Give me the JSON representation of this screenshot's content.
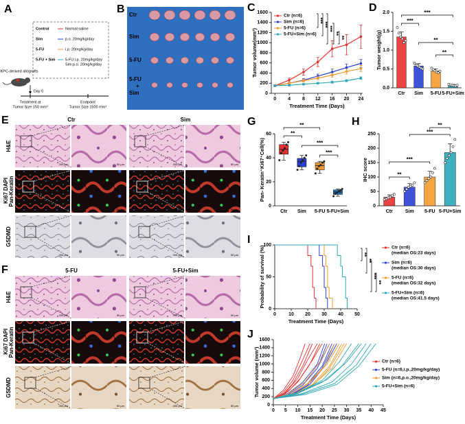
{
  "figure": {
    "panel_labels": [
      "A",
      "B",
      "C",
      "D",
      "E",
      "F",
      "G",
      "H",
      "I",
      "J"
    ],
    "schematic": {
      "allografts": "KPC-derived allografts",
      "day0": "Day 0",
      "treatment": [
        "Treatment at",
        "Tumor Size 150 mm³"
      ],
      "endpoint": [
        "Endpoint",
        "Tumor Size 1500 mm³"
      ],
      "legend": [
        {
          "group": "Control",
          "treatment": "Normal saline",
          "color": "#e8312f"
        },
        {
          "group": "Sim",
          "treatment": "p.o. 20mg/kg/day",
          "color": "#2a3fd6"
        },
        {
          "group": "5-FU",
          "treatment": "i.p. 20mg/kg/day",
          "color": "#f39a2b"
        },
        {
          "group": "5-FU + Sim",
          "treatment": [
            "5-FU:i.p. 20mg/kg/day",
            "Sim:p.o. 20mg/kg/day"
          ],
          "color": "#2aa7b8"
        }
      ]
    },
    "tumor_photo": {
      "row_labels": [
        "Ctr",
        "Sim",
        "5-FU",
        [
          "5-FU",
          "+",
          "Sim"
        ]
      ]
    },
    "micrographs": [
      {
        "columns": [
          "Ctr",
          "Sim"
        ]
      },
      {
        "columns": [
          "5-FU",
          "5-FU+Sim"
        ]
      }
    ],
    "row_labels": [
      "H&E",
      [
        "Ki67",
        "DAPI",
        "Pan-Keratin"
      ],
      "GSDMD"
    ],
    "scale_bars": [
      "200 μm",
      "50 μm"
    ]
  },
  "chart_data": [
    {
      "type": "line",
      "xlabel": "Treatment Time (Days)",
      "ylabel": "Tumor volume(mm³)",
      "x": [
        0,
        4,
        8,
        12,
        16,
        20,
        24
      ],
      "xlim": [
        -1,
        24.5
      ],
      "xticks": [
        0,
        4,
        8,
        12,
        16,
        20,
        24
      ],
      "ylim": [
        0,
        1600
      ],
      "yticks": [
        0,
        200,
        400,
        600,
        800,
        1000,
        1200,
        1400,
        1600
      ],
      "legend": "top-left",
      "series": [
        {
          "name": "Ctr (n=6)",
          "color": "#e8312f",
          "values": [
            150,
            260,
            420,
            620,
            880,
            960,
            1120
          ],
          "errors": [
            15,
            40,
            60,
            90,
            160,
            200,
            230
          ]
        },
        {
          "name": "Sim (n=6)",
          "color": "#2a3fd6",
          "values": [
            150,
            200,
            260,
            340,
            420,
            510,
            590
          ],
          "errors": [
            10,
            20,
            30,
            40,
            60,
            70,
            80
          ]
        },
        {
          "name": "5-FU (n=6)",
          "color": "#f39a2b",
          "values": [
            150,
            200,
            250,
            300,
            360,
            430,
            490
          ],
          "errors": [
            10,
            20,
            25,
            30,
            40,
            50,
            60
          ]
        },
        {
          "name": "5-FU+Sim (n=6)",
          "color": "#2aa7b8",
          "values": [
            150,
            160,
            180,
            200,
            220,
            250,
            300
          ],
          "errors": [
            10,
            10,
            15,
            15,
            20,
            20,
            25
          ]
        }
      ],
      "annotations": [
        "***",
        "***",
        "***",
        "**",
        "**"
      ]
    },
    {
      "type": "bar",
      "ylabel": "Tumor weight(g)",
      "categories": [
        "Ctr",
        "Sim",
        "5-FU",
        "5-FU+Sim"
      ],
      "values": [
        1.35,
        0.58,
        0.45,
        0.07
      ],
      "errors": [
        0.13,
        0.06,
        0.05,
        0.02
      ],
      "colors": [
        "#e8312f",
        "#2a3fd6",
        "#f39a2b",
        "#1f8fa0"
      ],
      "points": [
        [
          1.6,
          1.45,
          1.35,
          1.3,
          1.2,
          1.25
        ],
        [
          0.65,
          0.6,
          0.58,
          0.55,
          0.52,
          0.5
        ],
        [
          0.52,
          0.48,
          0.45,
          0.42,
          0.4,
          0.44
        ],
        [
          0.09,
          0.08,
          0.07,
          0.06,
          0.05,
          0.07
        ]
      ],
      "ylim": [
        0,
        2
      ],
      "yticks": [
        {
          "value": 0,
          "label": "0.0"
        },
        {
          "value": 0.5,
          "label": "0.5"
        },
        {
          "value": 1,
          "label": "1.0"
        },
        {
          "value": 1.5,
          "label": "1.5"
        },
        {
          "value": 2,
          "label": "2.0"
        }
      ],
      "annotations": [
        "***",
        "***",
        "**",
        "**"
      ]
    },
    {
      "type": "box",
      "ylabel": "Pan- Keratin⁺Ki67⁺Cell(%)",
      "categories": [
        "Ctr",
        "Sim",
        "5-FU",
        "5-FU+Sim"
      ],
      "colors": [
        "#e8312f",
        "#2a3fd6",
        "#f39a2b",
        "#1f6fb8"
      ],
      "boxes": [
        {
          "min": 38,
          "q1": 43,
          "median": 47,
          "q3": 51,
          "max": 53,
          "points": [
            38,
            44,
            46,
            48,
            51,
            53
          ]
        },
        {
          "min": 30,
          "q1": 32.5,
          "median": 37,
          "q3": 39.5,
          "max": 42,
          "points": [
            30,
            33,
            36,
            38,
            40,
            42
          ]
        },
        {
          "min": 27,
          "q1": 30,
          "median": 33.5,
          "q3": 36,
          "max": 37,
          "points": [
            27,
            31,
            33,
            34,
            36,
            37
          ]
        },
        {
          "min": 8,
          "q1": 9.5,
          "median": 11.5,
          "q3": 13.25,
          "max": 14,
          "points": [
            8,
            10,
            11,
            12,
            13,
            14
          ]
        }
      ],
      "ylim": [
        0,
        60
      ],
      "yticks": [
        0,
        20,
        40,
        60
      ],
      "annotations": [
        "**",
        "**",
        "***",
        "***"
      ]
    },
    {
      "type": "bar",
      "ylabel": "IHC score",
      "categories": [
        "Ctr",
        "Sim",
        "5-FU",
        "5-FU+Sim"
      ],
      "values": [
        30,
        65,
        100,
        185
      ],
      "errors": [
        8,
        12,
        20,
        30
      ],
      "colors": [
        "#e8312f",
        "#2a3fd6",
        "#f39a2b",
        "#2aa7b8"
      ],
      "points": [
        [
          22,
          25,
          28,
          30,
          35,
          40
        ],
        [
          50,
          58,
          65,
          68,
          72,
          80
        ],
        [
          80,
          88,
          95,
          100,
          115,
          130
        ],
        [
          150,
          165,
          175,
          185,
          205,
          230
        ]
      ],
      "ylim": [
        0,
        250
      ],
      "yticks": [
        0,
        50,
        100,
        150,
        200,
        250
      ],
      "annotations": [
        "**",
        "***",
        "***",
        "**"
      ]
    },
    {
      "type": "step",
      "xlabel": "Treatment Time (Days)",
      "ylabel": "Probability of survival (%)",
      "xlim": [
        0,
        50
      ],
      "xticks": [
        0,
        10,
        20,
        30,
        40,
        50
      ],
      "ylim": [
        0,
        100
      ],
      "yticks": [
        0,
        50,
        100
      ],
      "legend": "right",
      "series": [
        {
          "name": "Ctr (n=6)",
          "note": "(median OS:23 days)",
          "color": "#e8312f",
          "x": [
            0,
            20,
            22,
            23,
            24,
            25
          ],
          "values": [
            100,
            83.3,
            66.7,
            33.3,
            16.7,
            0
          ]
        },
        {
          "name": "Sim (n=6)",
          "note": "(median OS:30 days)",
          "color": "#2a3fd6",
          "x": [
            0,
            27,
            29,
            30,
            31,
            32
          ],
          "values": [
            100,
            83.3,
            66.7,
            33.3,
            16.7,
            0
          ]
        },
        {
          "name": "5-FU (n=6)",
          "note": "(median OS:32 days)",
          "color": "#f39a2b",
          "x": [
            0,
            30,
            31,
            32,
            33,
            35
          ],
          "values": [
            100,
            83.3,
            66.7,
            33.3,
            16.7,
            0
          ]
        },
        {
          "name": "5-FU+Sim (n=6)",
          "note": "(median OS:41.5 days)",
          "color": "#2aa7b8",
          "x": [
            0,
            38,
            40,
            41,
            43,
            44
          ],
          "values": [
            100,
            83.3,
            66.7,
            50,
            16.7,
            0
          ]
        }
      ],
      "annotations": [
        "**",
        "**",
        "***",
        "**"
      ]
    },
    {
      "type": "line",
      "xlabel": "Treatment Time (Days)",
      "ylabel": "Tumor volume (mm³)",
      "xlim": [
        0,
        45
      ],
      "xticks": [
        0,
        5,
        10,
        15,
        20,
        25,
        30,
        35,
        40,
        45
      ],
      "ylim": [
        0,
        1600
      ],
      "yticks": [
        0,
        200,
        400,
        600,
        800,
        1000,
        1200,
        1400,
        1600
      ],
      "legend": "right",
      "series": [
        {
          "name": "Ctr (n=6)",
          "color": "#e8312f",
          "lines": [
            {
              "x": [
                0,
                4,
                8,
                12,
                15
              ],
              "values": [
                150,
                300,
                600,
                1100,
                1500
              ]
            },
            {
              "x": [
                0,
                4,
                8,
                12,
                16
              ],
              "values": [
                150,
                260,
                520,
                950,
                1500
              ]
            },
            {
              "x": [
                0,
                5,
                10,
                14,
                18
              ],
              "values": [
                150,
                300,
                650,
                1100,
                1500
              ]
            },
            {
              "x": [
                0,
                5,
                10,
                15,
                19
              ],
              "values": [
                150,
                280,
                560,
                1000,
                1500
              ]
            },
            {
              "x": [
                0,
                6,
                11,
                16,
                20
              ],
              "values": [
                150,
                320,
                650,
                1100,
                1500
              ]
            },
            {
              "x": [
                0,
                4,
                8,
                11,
                13
              ],
              "values": [
                150,
                350,
                700,
                1150,
                1500
              ]
            }
          ]
        },
        {
          "name": "5-FU (n=6,i.p.,20mg/kg/day)",
          "color": "#2a3fd6",
          "lines": [
            {
              "x": [
                0,
                6,
                12,
                18,
                21
              ],
              "values": [
                150,
                280,
                550,
                1000,
                1500
              ]
            },
            {
              "x": [
                0,
                6,
                12,
                18,
                23
              ],
              "values": [
                150,
                250,
                480,
                900,
                1500
              ]
            },
            {
              "x": [
                0,
                7,
                14,
                20,
                24
              ],
              "values": [
                150,
                260,
                520,
                950,
                1500
              ]
            },
            {
              "x": [
                0,
                7,
                14,
                20,
                25
              ],
              "values": [
                150,
                240,
                480,
                900,
                1500
              ]
            },
            {
              "x": [
                0,
                8,
                15,
                21,
                26
              ],
              "values": [
                150,
                260,
                500,
                950,
                1500
              ]
            },
            {
              "x": [
                0,
                6,
                13,
                19,
                22
              ],
              "values": [
                150,
                270,
                560,
                1050,
                1500
              ]
            }
          ]
        },
        {
          "name": "Sim (n=6,p.o.,20mg/kg/day)",
          "color": "#f39a2b",
          "lines": [
            {
              "x": [
                0,
                7,
                14,
                21,
                25
              ],
              "values": [
                150,
                260,
                520,
                950,
                1500
              ]
            },
            {
              "x": [
                0,
                8,
                16,
                23,
                28
              ],
              "values": [
                150,
                250,
                500,
                950,
                1500
              ]
            },
            {
              "x": [
                0,
                8,
                16,
                24,
                30
              ],
              "values": [
                150,
                240,
                480,
                900,
                1500
              ]
            },
            {
              "x": [
                0,
                7,
                15,
                22,
                27
              ],
              "values": [
                150,
                260,
                540,
                1000,
                1500
              ]
            },
            {
              "x": [
                0,
                6,
                13,
                19,
                23
              ],
              "values": [
                150,
                270,
                560,
                1050,
                1500
              ]
            },
            {
              "x": [
                0,
                8,
                16,
                23,
                29
              ],
              "values": [
                150,
                230,
                460,
                900,
                1500
              ]
            }
          ]
        },
        {
          "name": "5-FU+Sim (n=6)",
          "color": "#2aa7b8",
          "lines": [
            {
              "x": [
                0,
                10,
                20,
                27,
                32
              ],
              "values": [
                150,
                300,
                600,
                1050,
                1500
              ]
            },
            {
              "x": [
                0,
                10,
                20,
                28,
                35
              ],
              "values": [
                150,
                280,
                550,
                950,
                1500
              ]
            },
            {
              "x": [
                0,
                12,
                24,
                32,
                38
              ],
              "values": [
                150,
                280,
                560,
                1000,
                1500
              ]
            },
            {
              "x": [
                0,
                12,
                25,
                34,
                40
              ],
              "values": [
                150,
                260,
                520,
                980,
                1500
              ]
            },
            {
              "x": [
                0,
                13,
                26,
                35,
                42
              ],
              "values": [
                150,
                250,
                500,
                950,
                1500
              ]
            },
            {
              "x": [
                0,
                10,
                22,
                30,
                36
              ],
              "values": [
                150,
                300,
                620,
                1050,
                1500
              ]
            }
          ]
        }
      ]
    }
  ]
}
